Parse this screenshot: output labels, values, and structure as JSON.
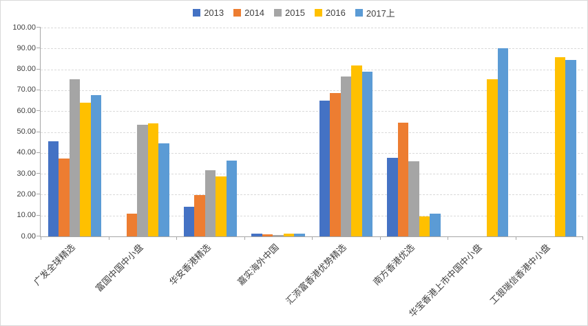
{
  "chart_data": {
    "type": "bar",
    "title": "",
    "categories": [
      "广发全球精选",
      "富国中国中小盘",
      "华安香港精选",
      "嘉实海外中国",
      "汇添富香港优势精选",
      "南方香港优选",
      "华宝香港上市中国中小盘",
      "工银瑞信香港中小盘"
    ],
    "series": [
      {
        "name": "2013",
        "color": "#4472C4",
        "values": [
          45.6,
          null,
          14.3,
          1.2,
          64.9,
          37.6,
          null,
          null
        ]
      },
      {
        "name": "2014",
        "color": "#ED7D31",
        "values": [
          37.4,
          11.0,
          19.8,
          1.0,
          68.5,
          54.4,
          null,
          null
        ]
      },
      {
        "name": "2015",
        "color": "#A5A5A5",
        "values": [
          75.4,
          53.4,
          31.8,
          0.8,
          76.5,
          36.1,
          null,
          null
        ]
      },
      {
        "name": "2016",
        "color": "#FFC000",
        "values": [
          63.9,
          54.0,
          28.8,
          1.3,
          81.8,
          9.6,
          75.4,
          85.9
        ]
      },
      {
        "name": "2017上",
        "color": "#5B9BD5",
        "values": [
          67.7,
          44.6,
          36.4,
          1.3,
          78.9,
          10.8,
          90.0,
          84.5
        ]
      }
    ],
    "ylim": [
      0,
      100
    ],
    "y_tick_step": 10,
    "y_ticks": [
      "0.00",
      "10.00",
      "20.00",
      "30.00",
      "40.00",
      "50.00",
      "60.00",
      "70.00",
      "80.00",
      "90.00",
      "100.00"
    ],
    "grid": true,
    "grid_style": "dashed",
    "legend_position": "top-center",
    "xlabel": "",
    "ylabel": ""
  }
}
